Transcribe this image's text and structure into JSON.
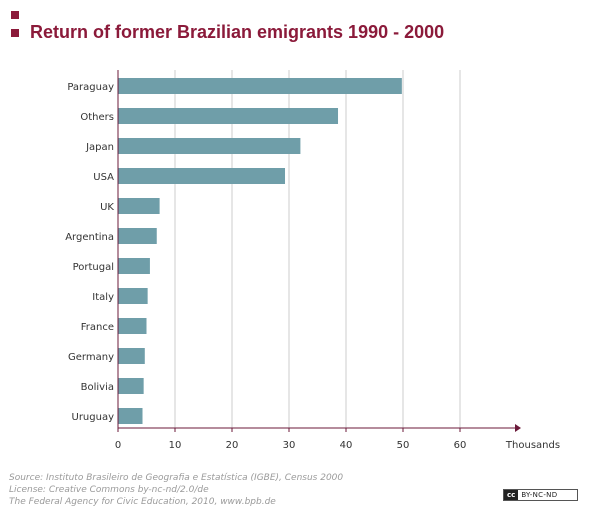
{
  "title": "Return of former Brazilian emigrants 1990 - 2000",
  "footer": {
    "source": "Source: Instituto Brasileiro de Geografia e Estatística (IGBE), Census 2000",
    "license": "License: Creative Commons by-nc-nd/2.0/de",
    "publisher": "The Federal Agency for Civic Education, 2010, www.bpb.de"
  },
  "license_badge": {
    "mark": "cc",
    "text": "BY-NC-ND"
  },
  "colors": {
    "accent": "#8b1a3a",
    "bar": "#6f9ea9",
    "grid": "#cccccc",
    "axis": "#6b1a3a",
    "text": "#333333"
  },
  "chart_data": {
    "type": "bar",
    "orientation": "horizontal",
    "categories": [
      "Paraguay",
      "Others",
      "Japan",
      "USA",
      "UK",
      "Argentina",
      "Portugal",
      "Italy",
      "France",
      "Germany",
      "Bolivia",
      "Uruguay"
    ],
    "values": [
      49.8,
      38.6,
      32.0,
      29.3,
      7.3,
      6.8,
      5.6,
      5.2,
      5.0,
      4.7,
      4.5,
      4.3
    ],
    "xlabel": "Thousands",
    "xlim": [
      0,
      70
    ],
    "xticks": [
      0,
      10,
      20,
      30,
      40,
      50,
      60
    ],
    "grid": true
  }
}
